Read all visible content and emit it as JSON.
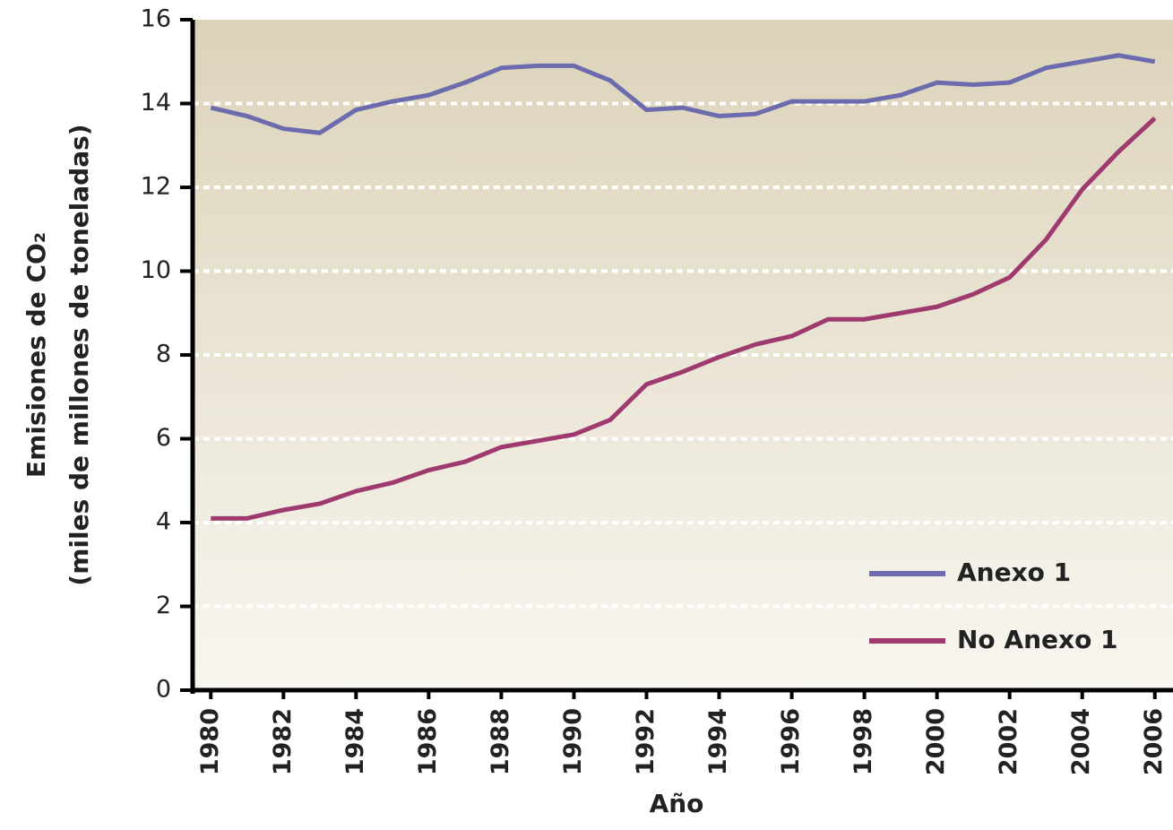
{
  "chart_data": {
    "type": "line",
    "y_label_lines": [
      "Emisiones de CO₂",
      "(miles de millones de toneladas)"
    ],
    "x_label": "Año",
    "x": [
      1980,
      1981,
      1982,
      1983,
      1984,
      1985,
      1986,
      1987,
      1988,
      1989,
      1990,
      1991,
      1992,
      1993,
      1994,
      1995,
      1996,
      1997,
      1998,
      1999,
      2000,
      2001,
      2002,
      2003,
      2004,
      2005,
      2006
    ],
    "series": [
      {
        "name": "Anexo 1",
        "color": "#6b6bae",
        "values": [
          13.9,
          13.7,
          13.4,
          13.3,
          13.85,
          14.05,
          14.2,
          14.5,
          14.85,
          14.9,
          14.9,
          14.55,
          13.85,
          13.9,
          13.7,
          13.75,
          14.05,
          14.05,
          14.05,
          14.2,
          14.5,
          14.45,
          14.5,
          14.85,
          15.0,
          15.15,
          15.0
        ]
      },
      {
        "name": "No Anexo 1",
        "color": "#9e3a6e",
        "values": [
          4.1,
          4.1,
          4.3,
          4.45,
          4.75,
          4.95,
          5.25,
          5.45,
          5.8,
          5.95,
          6.1,
          6.45,
          7.3,
          7.6,
          7.95,
          8.25,
          8.45,
          8.85,
          8.85,
          9.0,
          9.15,
          9.45,
          9.85,
          10.75,
          11.95,
          12.85,
          13.65
        ]
      }
    ],
    "xlim": [
      1979.5,
      2006.5
    ],
    "xticks": [
      1980,
      1982,
      1984,
      1986,
      1988,
      1990,
      1992,
      1994,
      1996,
      1998,
      2000,
      2002,
      2004,
      2006
    ],
    "ylim": [
      0,
      16
    ],
    "yticks": [
      0,
      2,
      4,
      6,
      8,
      10,
      12,
      14,
      16
    ],
    "grid": true,
    "legend": "lower right"
  }
}
